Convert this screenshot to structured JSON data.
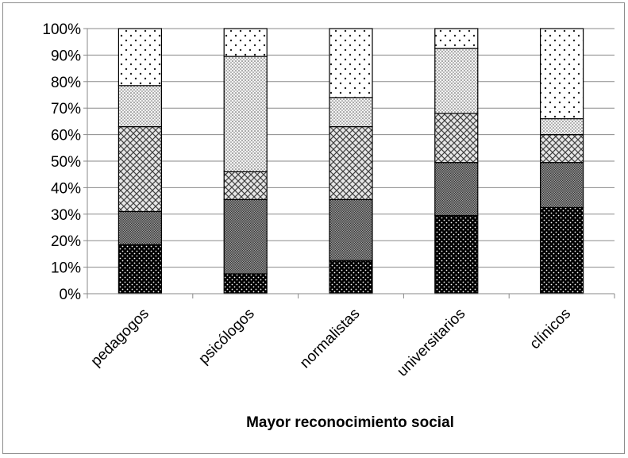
{
  "chart_data": {
    "type": "bar",
    "stacked": true,
    "percent": true,
    "categories": [
      "pedagogos",
      "psicólogos",
      "normalistas",
      "universitarios",
      "clínicos"
    ],
    "series": [
      {
        "values": [
          18.5,
          7.5,
          12.5,
          29.5,
          32.5
        ],
        "pattern": "dense-dots-dark"
      },
      {
        "values": [
          12.5,
          28.0,
          23.0,
          20.0,
          17.0
        ],
        "pattern": "fine-checker"
      },
      {
        "values": [
          32.0,
          10.5,
          27.5,
          18.5,
          10.5
        ],
        "pattern": "cross-hatch"
      },
      {
        "values": [
          15.5,
          43.5,
          11.0,
          24.5,
          6.0
        ],
        "pattern": "dotted-light"
      },
      {
        "values": [
          21.5,
          10.5,
          26.0,
          7.5,
          34.0
        ],
        "pattern": "sparse-dots"
      }
    ],
    "yticks": [
      "0%",
      "10%",
      "20%",
      "30%",
      "40%",
      "50%",
      "60%",
      "70%",
      "80%",
      "90%",
      "100%"
    ],
    "ylim": [
      0,
      100
    ],
    "grid": true,
    "xlabel": "Mayor reconocimiento social",
    "ylabel": "",
    "title": ""
  }
}
